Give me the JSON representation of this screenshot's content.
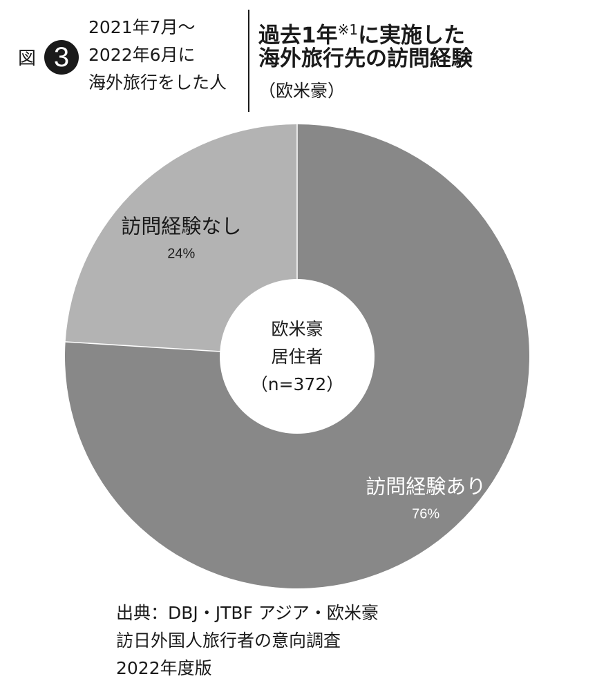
{
  "figure": {
    "label": "図",
    "number": "3"
  },
  "period_lines": [
    "2021年7月〜",
    "2022年6月に",
    "海外旅行をした人"
  ],
  "title": {
    "main_pre": "過去1年",
    "note_mark": "※1",
    "main_post": "に実施した",
    "line2": "海外旅行先の訪問経験",
    "subtitle": "（欧米豪）"
  },
  "chart_data": {
    "type": "pie",
    "donut": true,
    "center_label": [
      "欧米豪",
      "居住者",
      "（n=372）"
    ],
    "slices": [
      {
        "label": "訪問経験あり",
        "value": 76,
        "value_label": "76%",
        "color": "#888888",
        "label_color": "#ffffff"
      },
      {
        "label": "訪問経験なし",
        "value": 24,
        "value_label": "24%",
        "color": "#b3b3b3",
        "label_color": "#1a1a1a"
      }
    ],
    "start": "top",
    "direction": "clockwise",
    "separator_color": "#ffffff"
  },
  "source_lines": [
    "出典：DBJ・JTBF アジア・欧米豪",
    "訪日外国人旅行者の意向調査",
    "2022年度版"
  ]
}
